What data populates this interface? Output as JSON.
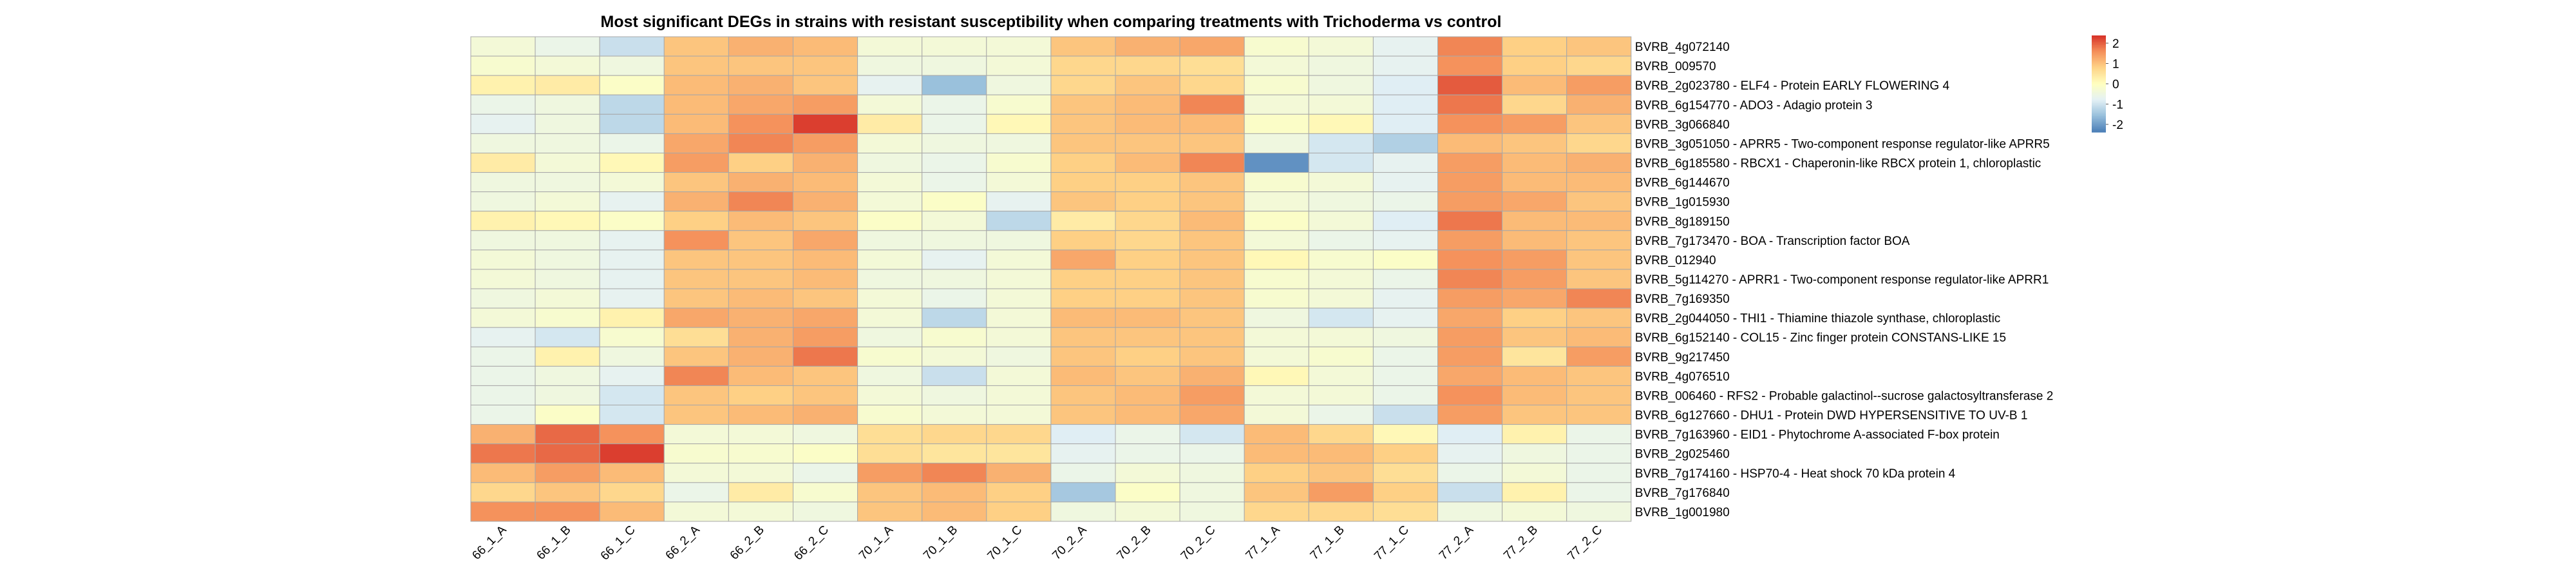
{
  "chart_data": {
    "type": "heatmap",
    "title": "Most significant DEGs in strains with resistant susceptibility when comparing treatments with Trichoderma vs control",
    "columns": [
      "66_1_A",
      "66_1_B",
      "66_1_C",
      "66_2_A",
      "66_2_B",
      "66_2_C",
      "70_1_A",
      "70_1_B",
      "70_1_C",
      "70_2_A",
      "70_2_B",
      "70_2_C",
      "77_1_A",
      "77_1_B",
      "77_1_C",
      "77_2_A",
      "77_2_B",
      "77_2_C"
    ],
    "rows": [
      "BVRB_4g072140",
      "BVRB_009570",
      "BVRB_2g023780 - ELF4 - Protein EARLY FLOWERING 4",
      "BVRB_6g154770 - ADO3 - Adagio protein 3",
      "BVRB_3g066840",
      "BVRB_3g051050 - APRR5 - Two-component response regulator-like APRR5",
      "BVRB_6g185580 - RBCX1 - Chaperonin-like RBCX protein 1, chloroplastic",
      "BVRB_6g144670",
      "BVRB_1g015930",
      "BVRB_8g189150",
      "BVRB_7g173470 - BOA - Transcription factor BOA",
      "BVRB_012940",
      "BVRB_5g114270 - APRR1 - Two-component response regulator-like APRR1",
      "BVRB_7g169350",
      "BVRB_2g044050 - THI1 - Thiamine thiazole synthase, chloroplastic",
      "BVRB_6g152140 - COL15 - Zinc finger protein CONSTANS-LIKE 15",
      "BVRB_9g217450",
      "BVRB_4g076510",
      "BVRB_006460 - RFS2 - Probable galactinol--sucrose galactosyltransferase 2",
      "BVRB_6g127660 - DHU1 - Protein DWD HYPERSENSITIVE TO UV-B 1",
      "BVRB_7g163960 - EID1 - Phytochrome A-associated F-box protein",
      "BVRB_2g025460",
      "BVRB_7g174160 - HSP70-4 - Heat shock 70 kDa protein 4",
      "BVRB_7g176840",
      "BVRB_1g001980"
    ],
    "values": [
      [
        -0.3,
        -0.5,
        -0.9,
        0.8,
        1.0,
        0.9,
        -0.3,
        -0.3,
        -0.3,
        0.8,
        1.0,
        1.1,
        -0.2,
        -0.3,
        -0.6,
        1.4,
        0.7,
        0.8
      ],
      [
        -0.2,
        -0.3,
        -0.4,
        0.8,
        0.8,
        0.8,
        -0.4,
        -0.4,
        -0.3,
        0.6,
        0.6,
        0.5,
        -0.3,
        -0.4,
        -0.6,
        1.3,
        0.7,
        0.6
      ],
      [
        0.2,
        0.3,
        -0.1,
        0.9,
        1.0,
        0.8,
        -0.6,
        -1.3,
        -0.4,
        0.6,
        0.8,
        0.6,
        -0.2,
        -0.4,
        -0.7,
        1.7,
        0.9,
        1.2
      ],
      [
        -0.5,
        -0.4,
        -1.0,
        0.9,
        1.1,
        1.2,
        -0.3,
        -0.5,
        -0.2,
        0.8,
        0.9,
        1.4,
        -0.3,
        -0.3,
        -0.7,
        1.5,
        0.6,
        1.0
      ],
      [
        -0.6,
        -0.4,
        -1.0,
        0.9,
        1.3,
        1.9,
        0.3,
        -0.5,
        0.1,
        0.8,
        0.9,
        0.9,
        -0.1,
        0.1,
        -0.7,
        1.3,
        1.2,
        0.8
      ],
      [
        -0.4,
        -0.4,
        -0.5,
        1.1,
        1.4,
        1.2,
        -0.3,
        -0.4,
        -0.4,
        0.8,
        0.8,
        0.8,
        -0.4,
        -0.8,
        -1.1,
        0.9,
        0.8,
        0.6
      ],
      [
        0.3,
        -0.3,
        0.1,
        1.2,
        0.7,
        1.0,
        -0.4,
        -0.5,
        -0.2,
        0.7,
        0.9,
        1.4,
        -1.8,
        -0.8,
        -0.6,
        1.2,
        0.9,
        1.0
      ],
      [
        -0.4,
        -0.4,
        -0.3,
        0.8,
        1.0,
        0.9,
        -0.3,
        -0.5,
        -0.3,
        0.7,
        0.7,
        0.8,
        -0.2,
        -0.3,
        -0.6,
        1.2,
        0.9,
        0.9
      ],
      [
        -0.4,
        -0.3,
        -0.6,
        1.0,
        1.4,
        1.0,
        -0.3,
        -0.1,
        -0.6,
        0.8,
        0.7,
        0.8,
        -0.3,
        -0.4,
        -0.5,
        1.2,
        1.1,
        0.8
      ],
      [
        0.2,
        0.1,
        -0.1,
        0.7,
        0.9,
        0.8,
        -0.1,
        -0.3,
        -1.0,
        0.3,
        0.6,
        0.9,
        -0.1,
        -0.3,
        -0.7,
        1.5,
        0.9,
        0.9
      ],
      [
        -0.4,
        -0.4,
        -0.6,
        1.3,
        0.8,
        1.1,
        -0.4,
        -0.4,
        -0.4,
        0.7,
        0.6,
        0.8,
        -0.3,
        -0.5,
        -0.6,
        1.2,
        0.9,
        0.8
      ],
      [
        -0.3,
        -0.4,
        -0.6,
        0.8,
        0.8,
        0.9,
        -0.3,
        -0.6,
        -0.3,
        1.1,
        0.7,
        0.8,
        0.1,
        -0.2,
        -0.1,
        1.3,
        1.2,
        0.8
      ],
      [
        -0.3,
        -0.4,
        -0.6,
        0.8,
        0.8,
        0.9,
        -0.4,
        -0.4,
        -0.3,
        0.7,
        0.7,
        0.8,
        -0.2,
        -0.3,
        -0.5,
        1.4,
        1.2,
        0.8
      ],
      [
        -0.4,
        -0.3,
        -0.6,
        0.8,
        0.9,
        0.8,
        -0.3,
        -0.5,
        -0.3,
        0.7,
        0.7,
        0.8,
        -0.2,
        -0.3,
        -0.6,
        1.2,
        1.1,
        1.4
      ],
      [
        -0.3,
        -0.2,
        0.2,
        1.1,
        1.0,
        1.1,
        -0.3,
        -1.0,
        -0.3,
        0.9,
        0.9,
        0.8,
        -0.4,
        -0.8,
        -0.6,
        1.1,
        0.7,
        0.8
      ],
      [
        -0.6,
        -0.8,
        -0.2,
        0.5,
        1.0,
        1.2,
        -0.4,
        -0.2,
        -0.3,
        0.8,
        0.8,
        0.8,
        -0.3,
        -0.3,
        -0.4,
        1.2,
        0.8,
        0.9
      ],
      [
        -0.5,
        0.2,
        -0.4,
        0.8,
        1.0,
        1.5,
        -0.2,
        -0.3,
        -0.4,
        0.8,
        0.7,
        0.8,
        -0.3,
        -0.2,
        -0.5,
        1.2,
        0.4,
        1.2
      ],
      [
        -0.5,
        -0.4,
        -0.6,
        1.4,
        0.9,
        0.8,
        -0.4,
        -0.9,
        -0.3,
        0.9,
        0.8,
        1.0,
        0.1,
        -0.3,
        -0.5,
        1.1,
        0.9,
        0.8
      ],
      [
        -0.5,
        -0.4,
        -0.8,
        0.8,
        0.7,
        0.8,
        -0.3,
        -0.4,
        -0.3,
        0.8,
        0.9,
        1.2,
        -0.3,
        -0.3,
        -0.5,
        1.3,
        0.9,
        0.8
      ],
      [
        -0.5,
        -0.1,
        -0.8,
        0.8,
        0.9,
        1.0,
        -0.2,
        -0.3,
        -0.3,
        0.8,
        0.9,
        1.1,
        -0.3,
        -0.5,
        -0.9,
        1.2,
        0.8,
        0.8
      ],
      [
        1.0,
        1.6,
        1.3,
        -0.3,
        -0.3,
        -0.4,
        0.5,
        0.6,
        0.6,
        -0.7,
        -0.5,
        -0.8,
        0.9,
        0.6,
        0.1,
        -0.7,
        0.2,
        -0.5
      ],
      [
        1.5,
        1.6,
        1.9,
        -0.2,
        -0.2,
        -0.1,
        0.5,
        0.4,
        0.4,
        -0.6,
        -0.5,
        -0.5,
        0.9,
        0.9,
        0.7,
        -0.6,
        -0.4,
        -0.5
      ],
      [
        0.9,
        1.2,
        0.9,
        -0.3,
        -0.3,
        -0.5,
        1.2,
        1.4,
        1.0,
        -0.5,
        -0.3,
        -0.4,
        0.7,
        0.8,
        0.5,
        -0.5,
        -0.3,
        -0.5
      ],
      [
        0.6,
        0.8,
        0.6,
        -0.5,
        0.3,
        -0.2,
        0.8,
        0.9,
        0.7,
        -1.2,
        -0.1,
        -0.4,
        0.8,
        1.2,
        0.7,
        -0.9,
        0.2,
        -0.5
      ],
      [
        1.3,
        1.3,
        0.9,
        -0.3,
        -0.3,
        -0.4,
        0.8,
        0.9,
        0.7,
        -0.4,
        -0.3,
        -0.4,
        0.6,
        0.6,
        0.5,
        -0.4,
        -0.3,
        -0.4
      ]
    ],
    "color_scale": {
      "min": -2,
      "max": 2,
      "ticks": [
        2,
        1,
        0,
        -1,
        -2
      ],
      "colors": [
        "#4a7eb7",
        "#96bedb",
        "#e4f1f5",
        "#ffffbf",
        "#fed387",
        "#f48f5a",
        "#d73027"
      ]
    },
    "grid": true
  }
}
